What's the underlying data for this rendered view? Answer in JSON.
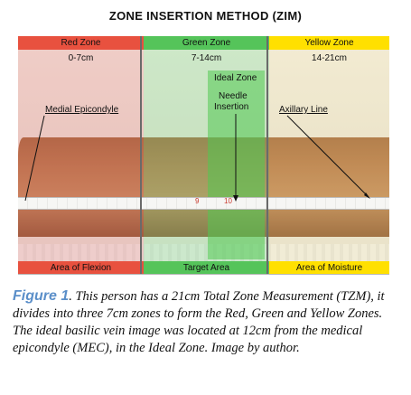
{
  "title": "ZONE INSERTION METHOD (ZIM)",
  "zones": [
    {
      "name": "Red Zone",
      "range": "0-7cm",
      "footer": "Area of Flexion"
    },
    {
      "name": "Green Zone",
      "range": "7-14cm",
      "footer": "Target Area"
    },
    {
      "name": "Yellow Zone",
      "range": "14-21cm",
      "footer": "Area of Moisture"
    }
  ],
  "labels": {
    "ideal_zone": "Ideal Zone",
    "needle_insertion_line1": "Needle",
    "needle_insertion_line2": "Insertion",
    "medial_epicondyle": "Medial Epicondyle",
    "axillary_line": "Axillary Line"
  },
  "ruler": {
    "numbers": [
      "9",
      "10"
    ]
  },
  "caption": {
    "figure": "Figure 1",
    "text": ". This person has a 21cm Total Zone Measurement (TZM), it divides into three 7cm zones to form the Red, Green and Yellow Zones. The ideal basilic vein image was located at 12cm from the medical epicondyle (MEC), in the Ideal Zone. Image by author."
  },
  "colors": {
    "red_bar": "#e8513f",
    "green_bar": "#55c45a",
    "yellow_bar": "#ffe000",
    "figure_label": "#5b8fc9"
  }
}
